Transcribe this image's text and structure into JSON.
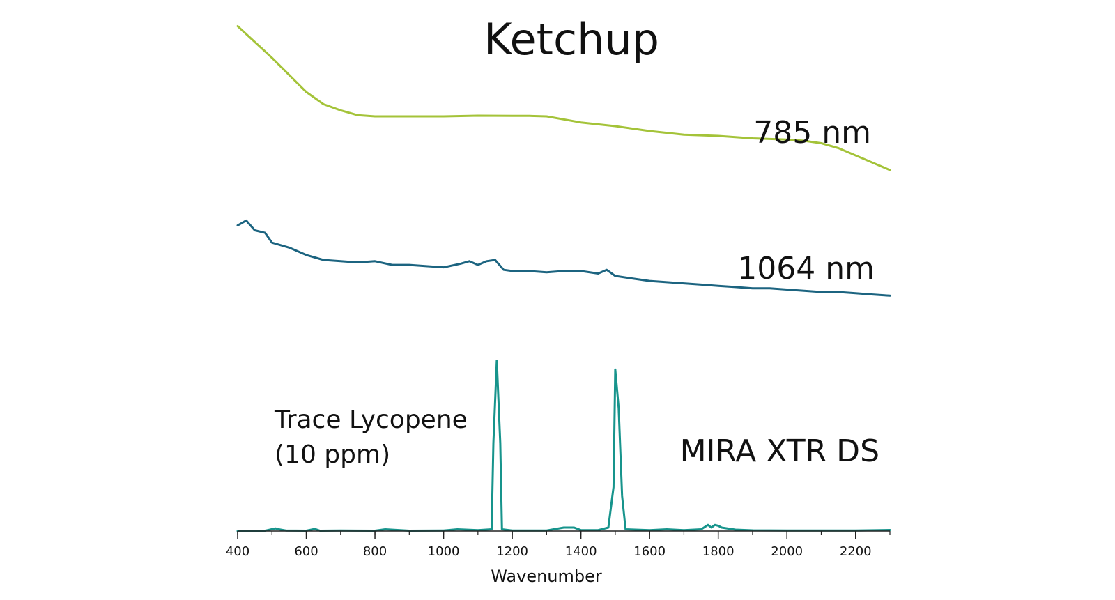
{
  "chart_data": {
    "type": "line",
    "title": "Ketchup",
    "xlabel": "Wavenumber",
    "ylabel": "",
    "xlim": [
      400,
      2300
    ],
    "ylim": [
      0,
      100
    ],
    "x_ticks": [
      400,
      600,
      800,
      1000,
      1200,
      1400,
      1600,
      1800,
      2000,
      2200
    ],
    "y_axis_shown": false,
    "grid": false,
    "legend": "none",
    "annotations": [
      {
        "line1": "Trace Lycopene",
        "line2": "(10 ppm)"
      }
    ],
    "series": [
      {
        "name": "785 nm",
        "color": "#a4c339",
        "x": [
          400,
          500,
          600,
          650,
          700,
          750,
          800,
          1000,
          1100,
          1200,
          1250,
          1300,
          1400,
          1500,
          1600,
          1700,
          1800,
          1900,
          2000,
          2050,
          2100,
          2150,
          2200,
          2250,
          2300
        ],
        "y": [
          95,
          82,
          68,
          63,
          60.5,
          58.5,
          58,
          58,
          58.3,
          58.2,
          58.2,
          58,
          55.5,
          54,
          52,
          50.5,
          50,
          49,
          48.5,
          48,
          47,
          45,
          42,
          39,
          36
        ]
      },
      {
        "name": "1064 nm",
        "color": "#1c6480",
        "x": [
          400,
          425,
          450,
          480,
          500,
          550,
          600,
          650,
          700,
          750,
          800,
          850,
          900,
          950,
          1000,
          1050,
          1075,
          1100,
          1125,
          1150,
          1175,
          1200,
          1250,
          1300,
          1350,
          1400,
          1450,
          1475,
          1500,
          1550,
          1600,
          1650,
          1700,
          1750,
          1800,
          1850,
          1900,
          1950,
          2000,
          2050,
          2100,
          2150,
          2200,
          2250,
          2300
        ],
        "y": [
          64,
          66,
          62,
          61,
          57,
          55,
          52,
          50,
          49.5,
          49,
          49.5,
          48,
          48,
          47.5,
          47,
          48.5,
          49.5,
          48,
          49.5,
          50,
          46,
          45.5,
          45.5,
          45,
          45.5,
          45.5,
          44.5,
          46,
          43.5,
          42.5,
          41.5,
          41,
          40.5,
          40,
          39.5,
          39,
          38.5,
          38.5,
          38,
          37.5,
          37,
          37,
          36.5,
          36,
          35.5
        ]
      },
      {
        "name": "MIRA XTR DS",
        "color": "#17948c",
        "x": [
          400,
          480,
          510,
          520,
          540,
          600,
          625,
          640,
          700,
          800,
          830,
          900,
          1000,
          1040,
          1100,
          1140,
          1145,
          1155,
          1165,
          1170,
          1200,
          1300,
          1350,
          1380,
          1400,
          1450,
          1480,
          1495,
          1500,
          1510,
          1520,
          1530,
          1600,
          1650,
          1700,
          1750,
          1770,
          1780,
          1790,
          1800,
          1810,
          1850,
          1900,
          2000,
          2100,
          2200,
          2300
        ],
        "y": [
          0,
          0.2,
          1.5,
          1,
          0.3,
          0.2,
          1.2,
          0.2,
          0.3,
          0.2,
          1,
          0.2,
          0.3,
          1,
          0.5,
          1,
          50,
          97,
          50,
          1,
          0.3,
          0.3,
          2,
          2,
          0.5,
          0.5,
          2,
          25,
          92,
          70,
          20,
          1,
          0.5,
          1,
          0.5,
          1,
          3.5,
          2,
          3.5,
          3,
          2,
          0.8,
          0.4,
          0.3,
          0.3,
          0.3,
          0.6
        ]
      }
    ]
  }
}
